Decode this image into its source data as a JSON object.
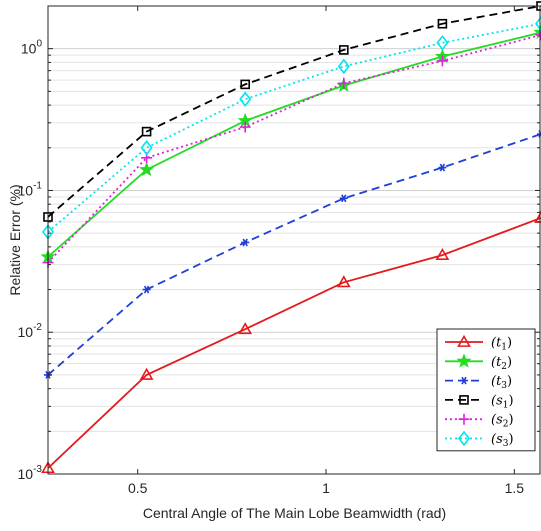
{
  "chart_data": {
    "type": "line",
    "xlabel": "Central Angle of The Main Lobe Beamwidth (rad)",
    "ylabel": "Relative Error (%)",
    "xlim": [
      0.2618,
      1.5708
    ],
    "ylim": [
      0.001,
      2
    ],
    "yscale": "log",
    "x_ticks": [
      "0.5",
      "1",
      "1.5"
    ],
    "x_tick_values": [
      0.5,
      1,
      1.5
    ],
    "y_ticks": [
      {
        "base": "10",
        "exp": "-3",
        "value": 0.001
      },
      {
        "base": "10",
        "exp": "-2",
        "value": 0.01
      },
      {
        "base": "10",
        "exp": "-1",
        "value": 0.1
      },
      {
        "base": "10",
        "exp": "0",
        "value": 1
      }
    ],
    "grid": "horizontal, major and minor",
    "legend_position": "bottom-right",
    "x": [
      0.2618,
      0.5236,
      0.7854,
      1.0472,
      1.309,
      1.5708
    ],
    "series": [
      {
        "name": "(t",
        "sub": "1",
        "close": ")",
        "color": "#e41a1c",
        "dash": "solid",
        "marker": "triangle",
        "values": [
          0.0011,
          0.005,
          0.0105,
          0.0225,
          0.035,
          0.064
        ]
      },
      {
        "name": "(t",
        "sub": "2",
        "close": ")",
        "color": "#22dd22",
        "dash": "solid",
        "marker": "star",
        "values": [
          0.034,
          0.14,
          0.31,
          0.55,
          0.88,
          1.3
        ]
      },
      {
        "name": "(t",
        "sub": "3",
        "close": ")",
        "color": "#1f3fd8",
        "dash": "dashed",
        "marker": "asterisk",
        "values": [
          0.005,
          0.02,
          0.043,
          0.088,
          0.145,
          0.25
        ]
      },
      {
        "name": "(s",
        "sub": "1",
        "close": ")",
        "color": "#000000",
        "dash": "dashed",
        "marker": "square",
        "values": [
          0.065,
          0.26,
          0.56,
          0.98,
          1.5,
          2.0
        ]
      },
      {
        "name": "(s",
        "sub": "2",
        "close": ")",
        "color": "#e020e0",
        "dash": "dotted",
        "marker": "plus",
        "values": [
          0.031,
          0.17,
          0.28,
          0.57,
          0.82,
          1.25
        ]
      },
      {
        "name": "(s",
        "sub": "3",
        "close": ")",
        "color": "#00e5ee",
        "dash": "dotted",
        "marker": "diamond",
        "values": [
          0.051,
          0.2,
          0.44,
          0.75,
          1.1,
          1.5
        ]
      }
    ]
  }
}
